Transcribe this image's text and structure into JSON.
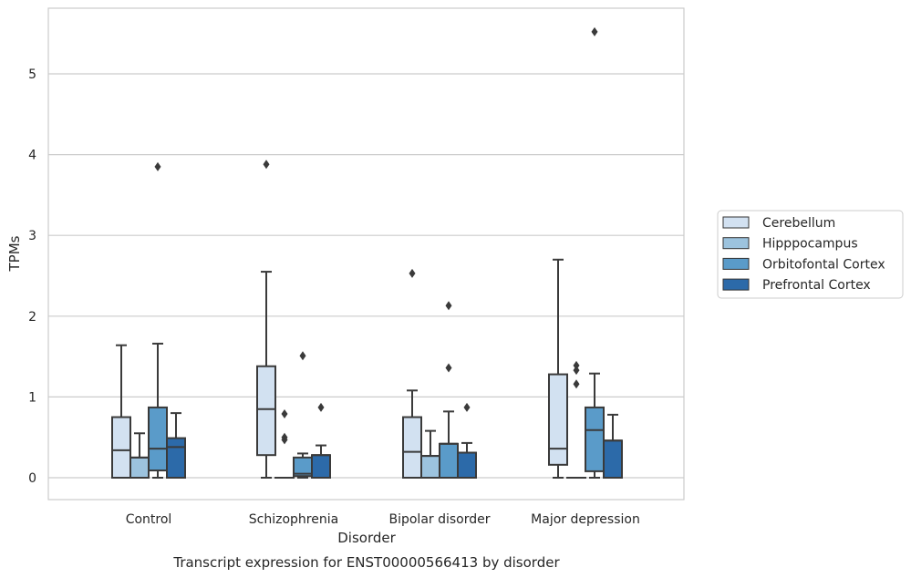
{
  "chart_data": {
    "type": "boxplot",
    "title": "",
    "caption": "Transcript expression for ENST00000566413 by disorder",
    "xlabel": "Disorder",
    "ylabel": "TPMs",
    "categories": [
      "Control",
      "Schizophrenia",
      "Bipolar disorder",
      "Major depression"
    ],
    "yticks": [
      "0",
      "1",
      "2",
      "3",
      "4",
      "5"
    ],
    "ylim": [
      -0.27,
      5.8
    ],
    "grid": "horizontal",
    "legend_position": "right",
    "series": [
      {
        "name": "Cerebellum",
        "color": "#d2e1f1",
        "boxes": [
          {
            "min": 0,
            "q1": 0,
            "median": 0.34,
            "q3": 0.75,
            "max": 1.64,
            "outliers": []
          },
          {
            "min": 0,
            "q1": 0.28,
            "median": 0.85,
            "q3": 1.38,
            "max": 2.55,
            "outliers": [
              3.88
            ]
          },
          {
            "min": 0,
            "q1": 0,
            "median": 0.32,
            "q3": 0.75,
            "max": 1.08,
            "outliers": [
              2.53
            ]
          },
          {
            "min": 0,
            "q1": 0.16,
            "median": 0.36,
            "q3": 1.28,
            "max": 2.7,
            "outliers": []
          }
        ]
      },
      {
        "name": "Hipppocampus",
        "color": "#9cc3de",
        "boxes": [
          {
            "min": 0,
            "q1": 0,
            "median": 0.25,
            "q3": 0.25,
            "max": 0.55,
            "outliers": []
          },
          {
            "min": 0,
            "q1": 0,
            "median": 0,
            "q3": 0,
            "max": 0,
            "outliers": [
              0.79,
              0.5,
              0.47
            ]
          },
          {
            "min": 0,
            "q1": 0,
            "median": 0.27,
            "q3": 0.27,
            "max": 0.58,
            "outliers": []
          },
          {
            "min": 0,
            "q1": 0,
            "median": 0,
            "q3": 0,
            "max": 0,
            "outliers": [
              1.39,
              1.33,
              1.16
            ]
          }
        ]
      },
      {
        "name": "Orbitofontal Cortex",
        "color": "#5a9bc9",
        "boxes": [
          {
            "min": 0,
            "q1": 0.09,
            "median": 0.36,
            "q3": 0.87,
            "max": 1.66,
            "outliers": [
              3.85
            ]
          },
          {
            "min": 0,
            "q1": 0.02,
            "median": 0.05,
            "q3": 0.25,
            "max": 0.3,
            "outliers": [
              1.51
            ]
          },
          {
            "min": 0,
            "q1": 0,
            "median": 0.42,
            "q3": 0.42,
            "max": 0.82,
            "outliers": [
              2.13,
              1.36
            ]
          },
          {
            "min": 0,
            "q1": 0.08,
            "median": 0.59,
            "q3": 0.87,
            "max": 1.29,
            "outliers": [
              5.52
            ]
          }
        ]
      },
      {
        "name": "Prefrontal Cortex",
        "color": "#2c6aa9",
        "boxes": [
          {
            "min": 0,
            "q1": 0,
            "median": 0.38,
            "q3": 0.49,
            "max": 0.8,
            "outliers": []
          },
          {
            "min": 0,
            "q1": 0,
            "median": 0.28,
            "q3": 0.28,
            "max": 0.4,
            "outliers": [
              0.87
            ]
          },
          {
            "min": 0,
            "q1": 0,
            "median": 0.31,
            "q3": 0.31,
            "max": 0.43,
            "outliers": [
              0.87
            ]
          },
          {
            "min": 0,
            "q1": 0,
            "median": 0.46,
            "q3": 0.46,
            "max": 0.78,
            "outliers": []
          }
        ]
      }
    ]
  }
}
